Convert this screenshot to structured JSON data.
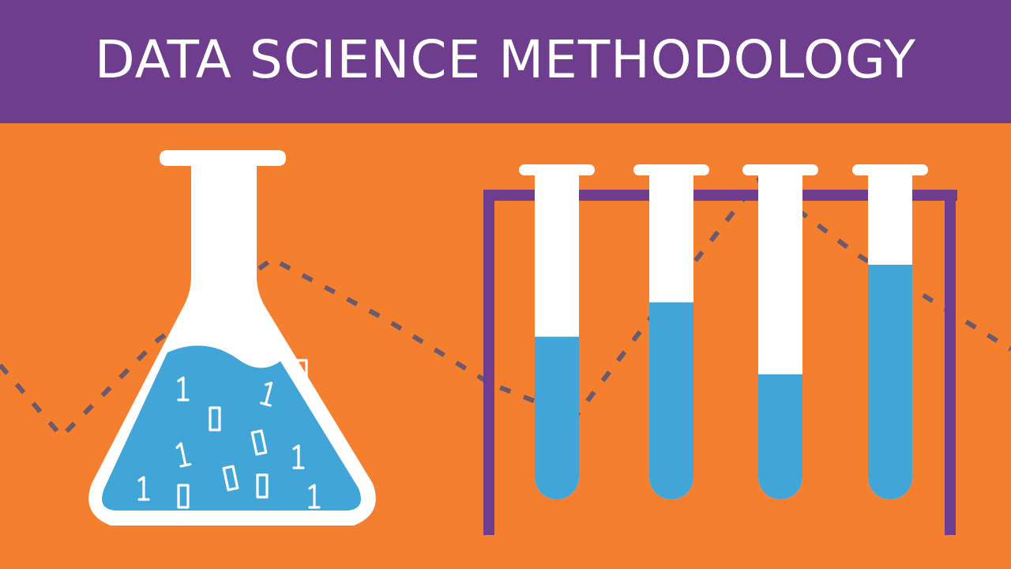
{
  "title": "DATA SCIENCE METHODOLOGY",
  "colors": {
    "background": "#F47F2E",
    "banner": "#6F3D8E",
    "liquid": "#42A5D8",
    "glass": "#FFFFFF",
    "rack": "#6F3D8E",
    "dashed_line": "#6B5A6E"
  },
  "flask": {
    "digits": [
      "1",
      "0",
      "1",
      "1",
      "0",
      "1",
      "0",
      "1",
      "0",
      "0",
      "1",
      "0"
    ]
  },
  "test_tubes": {
    "fill_levels": [
      0.52,
      0.63,
      0.4,
      0.75
    ]
  },
  "icons": [
    "flask-icon",
    "test-tube-rack-icon",
    "dashed-trend-line"
  ]
}
